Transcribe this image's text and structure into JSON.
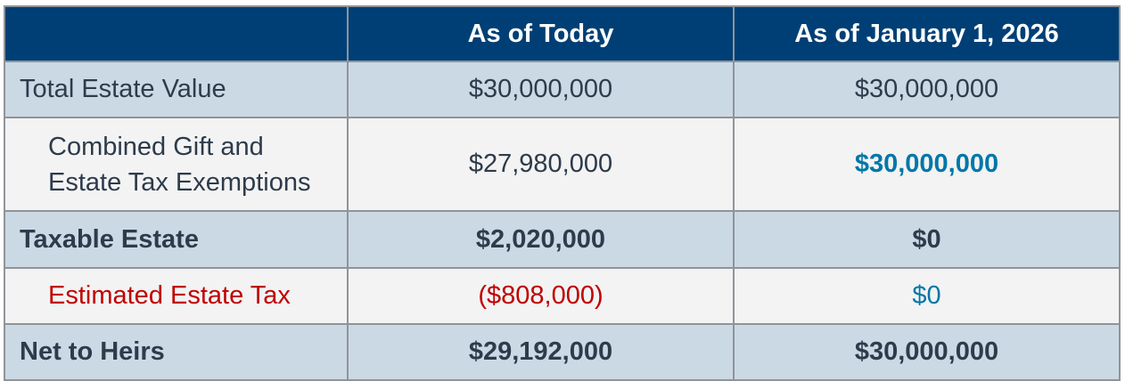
{
  "chart_data": {
    "type": "table",
    "columns": [
      "",
      "As of Today",
      "As of January 1, 2026"
    ],
    "rows": [
      {
        "label": "Total Estate Value",
        "today": "$30,000,000",
        "jan2026": "$30,000,000"
      },
      {
        "label_lines": [
          "Combined Gift and",
          "Estate Tax Exemptions"
        ],
        "today": "$27,980,000",
        "jan2026": "$30,000,000"
      },
      {
        "label": "Taxable Estate",
        "today": "$2,020,000",
        "jan2026": "$0"
      },
      {
        "label": "Estimated Estate Tax",
        "today": "($808,000)",
        "jan2026": "$0"
      },
      {
        "label": "Net to Heirs",
        "today": "$29,192,000",
        "jan2026": "$30,000,000"
      }
    ]
  },
  "colors": {
    "header_bg": "#003f75",
    "row_blue": "#cbd9e5",
    "row_grey": "#f3f3f3",
    "text": "#2d3b4b",
    "highlight_teal": "#0077a8",
    "tax_red": "#c00000"
  }
}
